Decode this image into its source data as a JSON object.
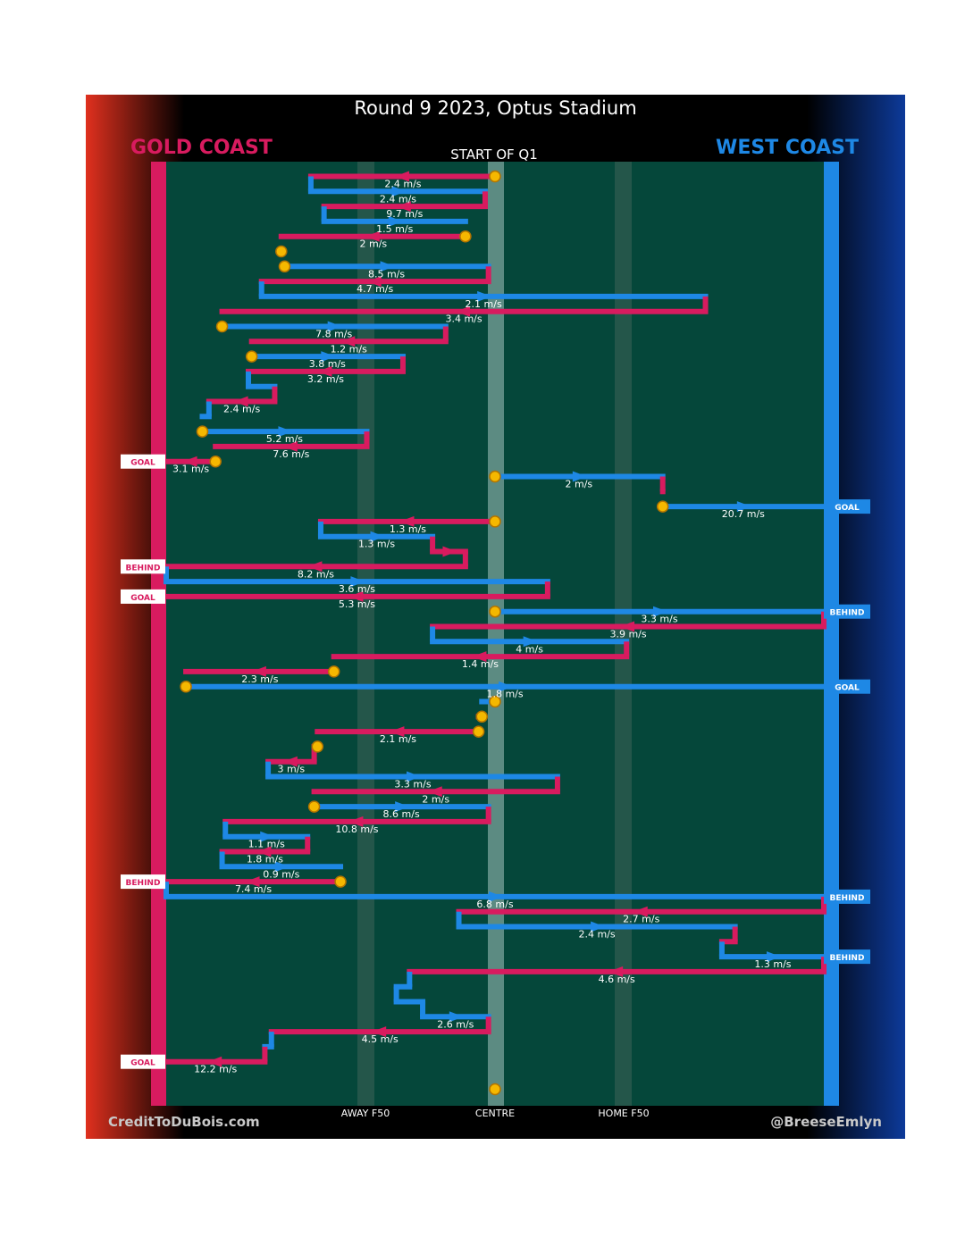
{
  "title": "Round 9 2023, Optus Stadium",
  "teams": {
    "home": {
      "name": "GOLD COAST",
      "color": "#d81b5f"
    },
    "away": {
      "name": "WEST COAST",
      "color": "#1e88e5"
    }
  },
  "field_color": "#05473a",
  "period_label": "START OF Q1",
  "axis_labels": [
    "AWAY F50",
    "CENTRE",
    "HOME F50"
  ],
  "credits": {
    "left": "CreditToDuBois.com",
    "right": "@BreeseEmlyn"
  },
  "chart_data": {
    "type": "line",
    "description_units": "x = field position (0 = Gold Coast goal line, 100 = West Coast goal line); each row is one possession chain segment",
    "xlim": [
      0,
      100
    ],
    "rows": [
      {
        "team": "GC",
        "x1": 50,
        "x2": 22,
        "speed": "2.4 m/s",
        "start": true
      },
      {
        "team": "WC",
        "x1": 22,
        "x2": 48.5,
        "speed": "2.4 m/s"
      },
      {
        "team": "GC",
        "x1": 48.5,
        "x2": 24,
        "speed": "9.7 m/s"
      },
      {
        "team": "WC",
        "x1": 24,
        "x2": 45.5,
        "speed": "1.5 m/s"
      },
      {
        "team": "GC",
        "x1": 45.5,
        "x2": 17.5,
        "speed": "2 m/s",
        "start": true
      },
      {
        "team": "GC",
        "x1": 17.5,
        "x2": 17.5,
        "speed": "",
        "start": true
      },
      {
        "team": "WC",
        "x1": 18,
        "x2": 49,
        "speed": "8.5 m/s",
        "start": true
      },
      {
        "team": "GC",
        "x1": 49,
        "x2": 14.5,
        "speed": "4.7 m/s"
      },
      {
        "team": "WC",
        "x1": 14.5,
        "x2": 82,
        "speed": "2.1 m/s"
      },
      {
        "team": "GC",
        "x1": 82,
        "x2": 8.5,
        "speed": "3.4 m/s"
      },
      {
        "team": "WC",
        "x1": 8.5,
        "x2": 42.5,
        "speed": "7.8 m/s",
        "start": true
      },
      {
        "team": "GC",
        "x1": 42.5,
        "x2": 13,
        "speed": "1.2 m/s"
      },
      {
        "team": "WC",
        "x1": 13,
        "x2": 36,
        "speed": "3.8 m/s",
        "start": true
      },
      {
        "team": "GC",
        "x1": 36,
        "x2": 12.5,
        "speed": "3.2 m/s"
      },
      {
        "team": "WC",
        "x1": 12.5,
        "x2": 16.5,
        "speed": ""
      },
      {
        "team": "GC",
        "x1": 16.5,
        "x2": 6.5,
        "speed": "2.4 m/s"
      },
      {
        "team": "WC",
        "x1": 6.5,
        "x2": 5.5,
        "speed": ""
      },
      {
        "team": "WC",
        "x1": 5.5,
        "x2": 30.5,
        "speed": "5.2 m/s",
        "start": true
      },
      {
        "team": "GC",
        "x1": 30.5,
        "x2": 7.5,
        "speed": "7.6 m/s"
      },
      {
        "team": "GC",
        "x1": 7.5,
        "x2": 0,
        "speed": "3.1 m/s",
        "start": true,
        "end": "GOAL"
      },
      {
        "team": "WC",
        "x1": 50,
        "x2": 75.5,
        "speed": "2 m/s",
        "start": true
      },
      {
        "team": "GC",
        "x1": 75.5,
        "x2": 75.5,
        "speed": ""
      },
      {
        "team": "WC",
        "x1": 75.5,
        "x2": 100,
        "speed": "20.7 m/s",
        "start": true,
        "end": "GOAL"
      },
      {
        "team": "GC",
        "x1": 50,
        "x2": 23.5,
        "speed": "1.3 m/s",
        "start": true
      },
      {
        "team": "WC",
        "x1": 23.5,
        "x2": 40.5,
        "speed": "1.3 m/s"
      },
      {
        "team": "GC",
        "x1": 40.5,
        "x2": 45.5,
        "speed": ""
      },
      {
        "team": "GC",
        "x1": 45.5,
        "x2": 0,
        "speed": "8.2 m/s",
        "end": "BEHIND"
      },
      {
        "team": "WC",
        "x1": 0,
        "x2": 58,
        "speed": "3.6 m/s"
      },
      {
        "team": "GC",
        "x1": 58,
        "x2": 0,
        "speed": "5.3 m/s",
        "end": "GOAL"
      },
      {
        "team": "WC",
        "x1": 50,
        "x2": 100,
        "speed": "3.3 m/s",
        "start": true,
        "end": "BEHIND"
      },
      {
        "team": "GC",
        "x1": 100,
        "x2": 40.5,
        "speed": "3.9 m/s"
      },
      {
        "team": "WC",
        "x1": 40.5,
        "x2": 70,
        "speed": "4 m/s"
      },
      {
        "team": "GC",
        "x1": 70,
        "x2": 25.5,
        "speed": "1.4 m/s"
      },
      {
        "team": "GC",
        "x1": 25.5,
        "x2": 3,
        "speed": "2.3 m/s",
        "start": true
      },
      {
        "team": "WC",
        "x1": 3,
        "x2": 100,
        "speed": "1.8 m/s",
        "start": true,
        "end": "GOAL"
      },
      {
        "team": "WC",
        "x1": 50,
        "x2": 48,
        "speed": "",
        "start": true
      },
      {
        "team": "GC",
        "x1": 48,
        "x2": 47.5,
        "speed": "",
        "start": true
      },
      {
        "team": "GC",
        "x1": 47.5,
        "x2": 23,
        "speed": "2.1 m/s",
        "start": true
      },
      {
        "team": "GC",
        "x1": 23,
        "x2": 22.5,
        "speed": "",
        "start": true
      },
      {
        "team": "GC",
        "x1": 22.5,
        "x2": 15.5,
        "speed": "3 m/s"
      },
      {
        "team": "WC",
        "x1": 15.5,
        "x2": 59.5,
        "speed": "3.3 m/s"
      },
      {
        "team": "GC",
        "x1": 59.5,
        "x2": 22.5,
        "speed": "2 m/s"
      },
      {
        "team": "WC",
        "x1": 22.5,
        "x2": 49,
        "speed": "8.6 m/s",
        "start": true
      },
      {
        "team": "GC",
        "x1": 49,
        "x2": 9,
        "speed": "10.8 m/s"
      },
      {
        "team": "WC",
        "x1": 9,
        "x2": 21.5,
        "speed": "1.1 m/s"
      },
      {
        "team": "GC",
        "x1": 21.5,
        "x2": 8.5,
        "speed": "1.8 m/s"
      },
      {
        "team": "WC",
        "x1": 8.5,
        "x2": 26.5,
        "speed": "0.9 m/s"
      },
      {
        "team": "GC",
        "x1": 26.5,
        "x2": 0,
        "speed": "7.4 m/s",
        "start": true,
        "end": "BEHIND"
      },
      {
        "team": "WC",
        "x1": 0,
        "x2": 100,
        "speed": "6.8 m/s",
        "end": "BEHIND"
      },
      {
        "team": "GC",
        "x1": 100,
        "x2": 44.5,
        "speed": "2.7 m/s"
      },
      {
        "team": "WC",
        "x1": 44.5,
        "x2": 86.5,
        "speed": "2.4 m/s"
      },
      {
        "team": "GC",
        "x1": 86.5,
        "x2": 84.5,
        "speed": ""
      },
      {
        "team": "WC",
        "x1": 84.5,
        "x2": 100,
        "speed": "1.3 m/s",
        "end": "BEHIND"
      },
      {
        "team": "GC",
        "x1": 100,
        "x2": 37,
        "speed": "4.6 m/s"
      },
      {
        "team": "WC",
        "x1": 37,
        "x2": 35,
        "speed": ""
      },
      {
        "team": "WC",
        "x1": 35,
        "x2": 39,
        "speed": ""
      },
      {
        "team": "WC",
        "x1": 39,
        "x2": 49,
        "speed": "2.6 m/s"
      },
      {
        "team": "GC",
        "x1": 49,
        "x2": 16,
        "speed": "4.5 m/s"
      },
      {
        "team": "WC",
        "x1": 16,
        "x2": 15,
        "speed": ""
      },
      {
        "team": "GC",
        "x1": 15,
        "x2": 0,
        "speed": "12.2 m/s",
        "end": "GOAL"
      }
    ],
    "final_marker_x": 50
  }
}
